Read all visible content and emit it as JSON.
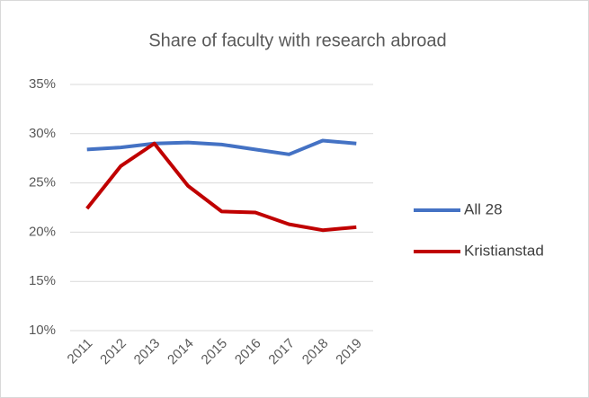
{
  "chart_data": {
    "type": "line",
    "title": "Share of faculty with research abroad",
    "categories": [
      "2011",
      "2012",
      "2013",
      "2014",
      "2015",
      "2016",
      "2017",
      "2018",
      "2019"
    ],
    "series": [
      {
        "name": "All 28",
        "color": "#4472c4",
        "values": [
          28.4,
          28.6,
          29.0,
          29.1,
          28.9,
          28.4,
          27.9,
          29.3,
          29.0
        ]
      },
      {
        "name": "Kristianstad",
        "color": "#c00000",
        "values": [
          22.4,
          26.7,
          29.0,
          24.7,
          22.1,
          22.0,
          20.8,
          20.2,
          20.5
        ]
      }
    ],
    "ylim": [
      10,
      35
    ],
    "yticks": [
      {
        "value": 10,
        "label": "10%"
      },
      {
        "value": 15,
        "label": "15%"
      },
      {
        "value": 20,
        "label": "20%"
      },
      {
        "value": 25,
        "label": "25%"
      },
      {
        "value": 30,
        "label": "30%"
      },
      {
        "value": 35,
        "label": "35%"
      }
    ],
    "grid": true,
    "legend": "right"
  }
}
